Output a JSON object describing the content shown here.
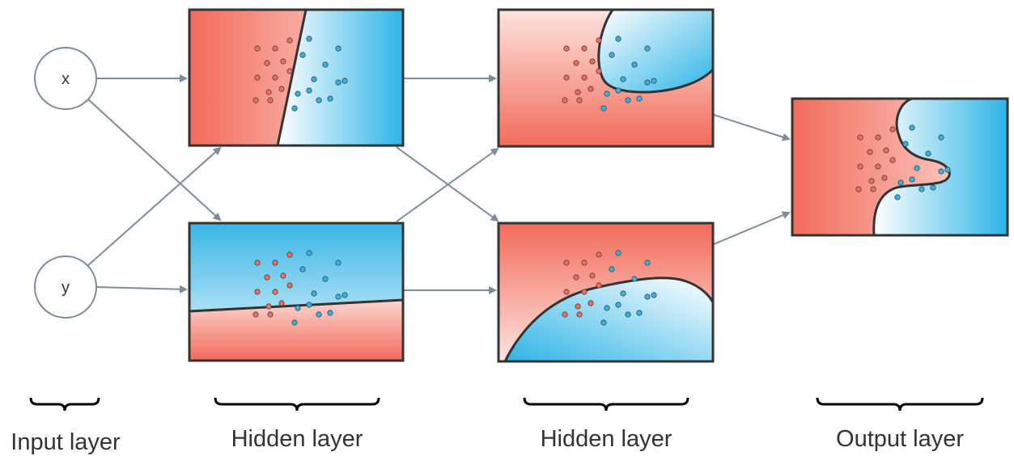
{
  "nodes": {
    "x_label": "x",
    "y_label": "y"
  },
  "layer_labels": {
    "input": "Input layer",
    "hidden_1": "Hidden layer",
    "hidden_2": "Hidden layer",
    "output": "Output layer"
  },
  "colors": {
    "red_class": "#f26b5b",
    "blue_class": "#2eb5e8",
    "arrow": "#7d8c9a",
    "node_stroke": "#7d8c9a",
    "panel_border": "#333333"
  }
}
